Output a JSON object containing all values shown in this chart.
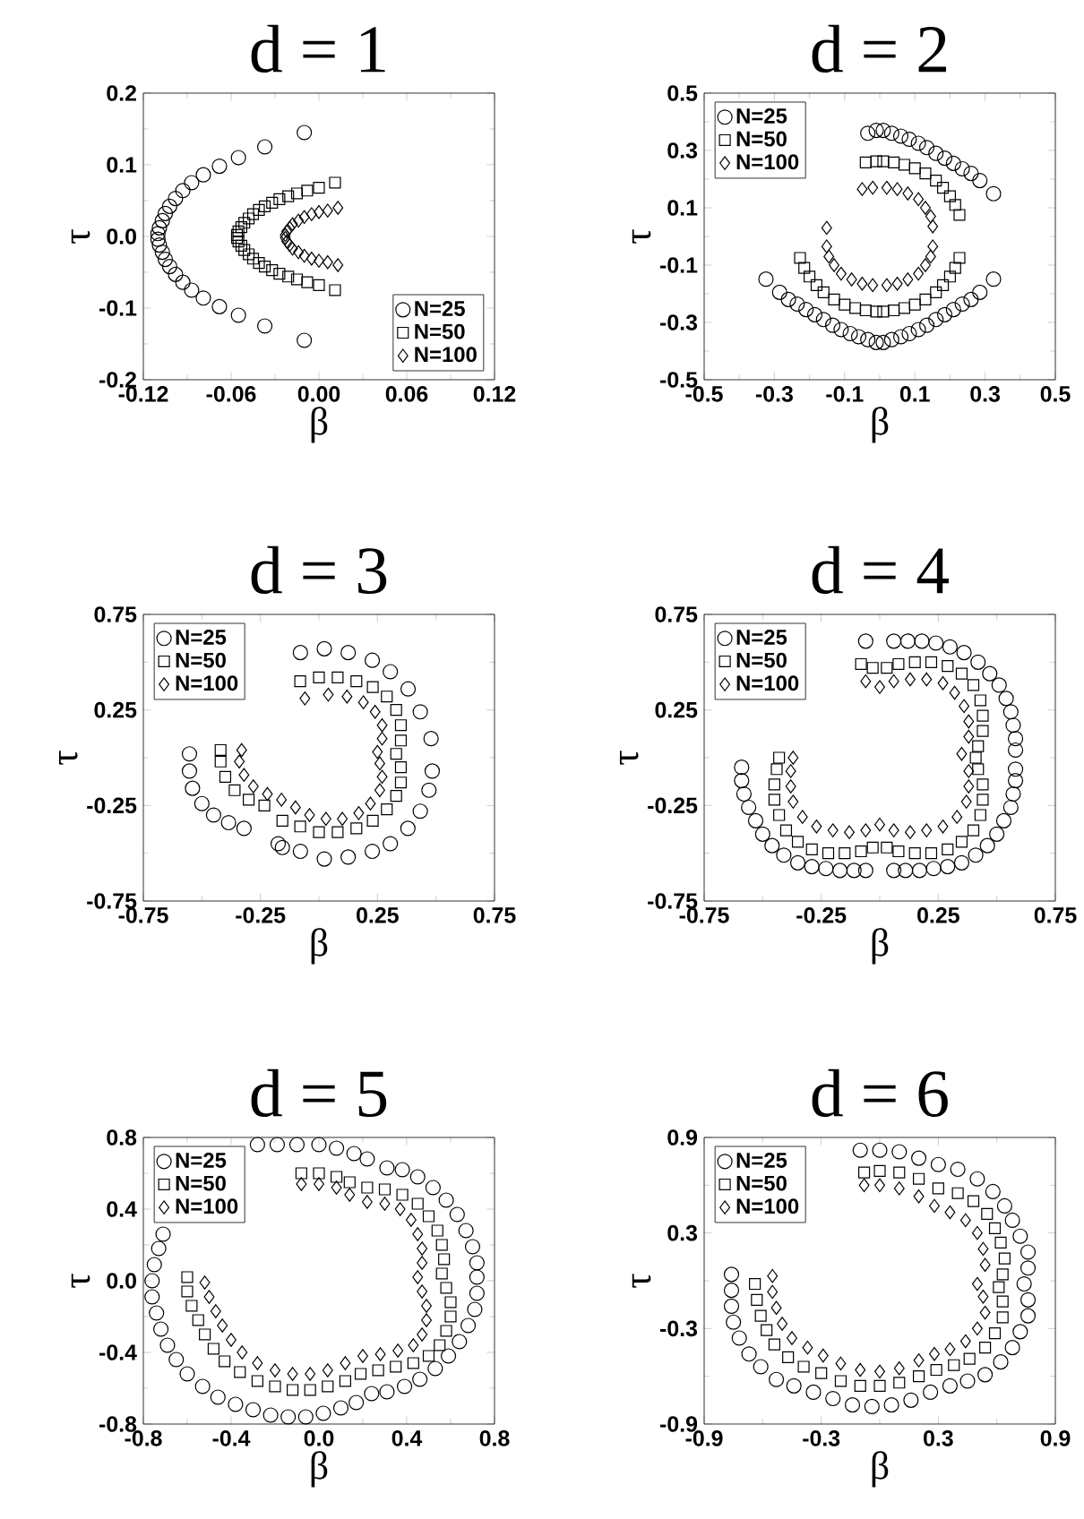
{
  "chart_data": [
    {
      "type": "scatter",
      "title": "d = 1",
      "xlabel": "β",
      "ylabel": "τ",
      "xlim": [
        -0.12,
        0.12
      ],
      "ylim": [
        -0.2,
        0.2
      ],
      "xticks": [
        -0.12,
        -0.06,
        {
          "value": 0,
          "label": "0.00"
        },
        0.06,
        0.12
      ],
      "yticks": [
        -0.2,
        -0.1,
        {
          "value": 0,
          "label": "0.0"
        },
        0.1,
        0.2
      ],
      "legend": "bottom right",
      "grid": false,
      "series": [
        {
          "name": "N=25",
          "color": "#000000",
          "marker": "circle",
          "x": [
            -0.01,
            -0.037,
            -0.055,
            -0.068,
            -0.079,
            -0.087,
            -0.093,
            -0.098,
            -0.102,
            -0.105,
            -0.107,
            -0.109,
            -0.11,
            -0.11,
            -0.109,
            -0.107,
            -0.105,
            -0.102,
            -0.098,
            -0.093,
            -0.087,
            -0.079,
            -0.068,
            -0.055,
            -0.037,
            -0.01
          ],
          "values": [
            0.145,
            0.125,
            0.11,
            0.098,
            0.086,
            0.075,
            0.064,
            0.053,
            0.042,
            0.032,
            0.022,
            0.012,
            0.004,
            -0.004,
            -0.012,
            -0.022,
            -0.032,
            -0.042,
            -0.053,
            -0.064,
            -0.075,
            -0.086,
            -0.098,
            -0.11,
            -0.125,
            -0.145
          ]
        },
        {
          "name": "N=50",
          "color": "#000000",
          "marker": "square",
          "x": [
            0.011,
            0.0,
            -0.008,
            -0.015,
            -0.021,
            -0.027,
            -0.032,
            -0.037,
            -0.041,
            -0.045,
            -0.048,
            -0.051,
            -0.053,
            -0.055,
            -0.056,
            -0.056,
            -0.055,
            -0.053,
            -0.051,
            -0.048,
            -0.045,
            -0.041,
            -0.037,
            -0.032,
            -0.027,
            -0.021,
            -0.015,
            -0.008,
            0.0,
            0.011
          ],
          "values": [
            0.075,
            0.068,
            0.064,
            0.06,
            0.056,
            0.052,
            0.047,
            0.042,
            0.037,
            0.031,
            0.025,
            0.019,
            0.013,
            0.007,
            0.002,
            -0.002,
            -0.007,
            -0.013,
            -0.019,
            -0.025,
            -0.031,
            -0.037,
            -0.042,
            -0.047,
            -0.052,
            -0.056,
            -0.06,
            -0.064,
            -0.068,
            -0.075
          ]
        },
        {
          "name": "N=100",
          "color": "#000000",
          "marker": "diamond",
          "x": [
            0.013,
            0.006,
            0.0,
            -0.005,
            -0.01,
            -0.014,
            -0.018,
            -0.02,
            -0.022,
            -0.023,
            -0.023,
            -0.022,
            -0.02,
            -0.018,
            -0.014,
            -0.01,
            -0.005,
            0.0,
            0.006,
            0.013
          ],
          "values": [
            0.04,
            0.036,
            0.034,
            0.031,
            0.027,
            0.022,
            0.017,
            0.012,
            0.007,
            0.002,
            -0.002,
            -0.007,
            -0.012,
            -0.017,
            -0.022,
            -0.027,
            -0.031,
            -0.034,
            -0.036,
            -0.04
          ]
        }
      ]
    },
    {
      "type": "scatter",
      "title": "d = 2",
      "xlabel": "β",
      "ylabel": "τ",
      "xlim": [
        -0.5,
        0.5
      ],
      "ylim": [
        -0.5,
        0.5
      ],
      "xticks": [
        -0.5,
        -0.3,
        -0.1,
        0.1,
        0.3,
        0.5
      ],
      "yticks": [
        -0.5,
        -0.3,
        -0.1,
        0.1,
        0.3,
        0.5
      ],
      "legend": "top left",
      "grid": false,
      "series": [
        {
          "name": "N=25",
          "color": "#000000",
          "marker": "circle",
          "x": [
            -0.324,
            -0.285,
            -0.26,
            -0.235,
            -0.21,
            -0.185,
            -0.16,
            -0.134,
            -0.11,
            -0.084,
            -0.06,
            -0.034,
            -0.01,
            0.01,
            0.034,
            0.06,
            0.084,
            0.11,
            0.134,
            0.16,
            0.185,
            0.21,
            0.235,
            0.26,
            0.285,
            0.324,
            -0.034,
            -0.01,
            0.01,
            0.034,
            0.06,
            0.084,
            0.11,
            0.134,
            0.16,
            0.185,
            0.21,
            0.235,
            0.26,
            0.285,
            0.324
          ],
          "values": [
            -0.149,
            -0.195,
            -0.22,
            -0.236,
            -0.255,
            -0.273,
            -0.29,
            -0.31,
            -0.325,
            -0.339,
            -0.35,
            -0.36,
            -0.37,
            -0.37,
            -0.36,
            -0.35,
            -0.339,
            -0.325,
            -0.31,
            -0.29,
            -0.273,
            -0.255,
            -0.236,
            -0.22,
            -0.195,
            -0.149,
            0.36,
            0.37,
            0.37,
            0.36,
            0.35,
            0.339,
            0.325,
            0.31,
            0.29,
            0.273,
            0.255,
            0.236,
            0.22,
            0.195,
            0.149
          ]
        },
        {
          "name": "N=50",
          "color": "#000000",
          "marker": "square",
          "x": [
            -0.227,
            -0.215,
            -0.2,
            -0.18,
            -0.16,
            -0.13,
            -0.1,
            -0.07,
            -0.04,
            -0.01,
            0.01,
            0.04,
            0.07,
            0.1,
            0.13,
            0.16,
            0.18,
            0.2,
            0.215,
            0.227,
            -0.04,
            -0.01,
            0.01,
            0.04,
            0.07,
            0.1,
            0.13,
            0.16,
            0.18,
            0.2,
            0.215,
            0.227
          ],
          "values": [
            -0.075,
            -0.11,
            -0.14,
            -0.17,
            -0.195,
            -0.22,
            -0.238,
            -0.25,
            -0.258,
            -0.262,
            -0.262,
            -0.258,
            -0.25,
            -0.238,
            -0.22,
            -0.195,
            -0.17,
            -0.14,
            -0.11,
            -0.075,
            0.258,
            0.262,
            0.262,
            0.258,
            0.25,
            0.238,
            0.22,
            0.195,
            0.17,
            0.14,
            0.11,
            0.075
          ]
        },
        {
          "name": "N=100",
          "color": "#000000",
          "marker": "diamond",
          "x": [
            -0.151,
            -0.145,
            -0.13,
            -0.11,
            -0.08,
            -0.05,
            -0.02,
            0.02,
            0.05,
            0.08,
            0.11,
            0.13,
            0.145,
            0.151,
            -0.151,
            -0.05,
            -0.02,
            0.02,
            0.05,
            0.08,
            0.11,
            0.13,
            0.145,
            0.151
          ],
          "values": [
            -0.035,
            -0.07,
            -0.1,
            -0.13,
            -0.15,
            -0.165,
            -0.17,
            -0.17,
            -0.165,
            -0.15,
            -0.13,
            -0.1,
            -0.07,
            -0.035,
            0.03,
            0.165,
            0.17,
            0.17,
            0.165,
            0.15,
            0.13,
            0.1,
            0.07,
            0.035
          ]
        }
      ]
    },
    {
      "type": "scatter",
      "title": "d = 3",
      "xlabel": "β",
      "ylabel": "τ",
      "xlim": [
        -0.75,
        0.75
      ],
      "ylim": [
        -0.75,
        0.75
      ],
      "xticks": [
        -0.75,
        -0.25,
        0.25,
        0.75
      ],
      "yticks": [
        -0.75,
        -0.25,
        0.25,
        0.75
      ],
      "legend": "top left",
      "grid": false,
      "series": [
        {
          "name": "N=25",
          "color": "#000000",
          "marker": "circle",
          "x": [
            -0.079,
            0.023,
            0.125,
            0.228,
            0.305,
            0.381,
            0.433,
            0.479,
            0.484,
            0.47,
            0.433,
            0.38,
            0.305,
            0.228,
            0.125,
            0.023,
            -0.079,
            -0.156,
            -0.174,
            -0.32,
            -0.386,
            -0.45,
            -0.5,
            -0.54,
            -0.553,
            -0.553
          ],
          "values": [
            0.55,
            0.57,
            0.55,
            0.51,
            0.45,
            0.36,
            0.24,
            0.1,
            -0.07,
            -0.17,
            -0.28,
            -0.37,
            -0.45,
            -0.49,
            -0.52,
            -0.53,
            -0.49,
            -0.47,
            -0.45,
            -0.37,
            -0.34,
            -0.3,
            -0.24,
            -0.16,
            -0.07,
            0.02
          ]
        },
        {
          "name": "N=50",
          "color": "#000000",
          "marker": "square",
          "x": [
            -0.08,
            0.0,
            0.08,
            0.16,
            0.23,
            0.29,
            0.33,
            0.35,
            0.35,
            0.33,
            0.35,
            0.35,
            0.33,
            0.29,
            0.23,
            0.16,
            0.08,
            0.0,
            -0.08,
            -0.156,
            -0.233,
            -0.3,
            -0.36,
            -0.4,
            -0.42,
            -0.42
          ],
          "values": [
            0.4,
            0.42,
            0.42,
            0.4,
            0.37,
            0.32,
            0.25,
            0.17,
            0.09,
            0.02,
            -0.05,
            -0.13,
            -0.2,
            -0.27,
            -0.33,
            -0.37,
            -0.39,
            -0.39,
            -0.36,
            -0.33,
            -0.25,
            -0.22,
            -0.17,
            -0.1,
            -0.02,
            0.04
          ]
        },
        {
          "name": "N=100",
          "color": "#000000",
          "marker": "diamond",
          "x": [
            -0.06,
            0.04,
            0.12,
            0.19,
            0.24,
            0.27,
            0.27,
            0.25,
            0.26,
            0.27,
            0.26,
            0.22,
            0.17,
            0.1,
            0.03,
            -0.04,
            -0.1,
            -0.16,
            -0.22,
            -0.28,
            -0.32,
            -0.34,
            -0.33
          ],
          "values": [
            0.31,
            0.33,
            0.32,
            0.29,
            0.24,
            0.17,
            0.1,
            0.03,
            -0.03,
            -0.1,
            -0.17,
            -0.24,
            -0.29,
            -0.32,
            -0.32,
            -0.3,
            -0.26,
            -0.22,
            -0.19,
            -0.15,
            -0.09,
            -0.02,
            0.04
          ]
        }
      ]
    },
    {
      "type": "scatter",
      "title": "d = 4",
      "xlabel": "β",
      "ylabel": "τ",
      "xlim": [
        -0.75,
        0.75
      ],
      "ylim": [
        -0.75,
        0.75
      ],
      "xticks": [
        -0.75,
        -0.25,
        0.25,
        0.75
      ],
      "yticks": [
        -0.75,
        -0.25,
        0.25,
        0.75
      ],
      "legend": "top left",
      "grid": false,
      "series": [
        {
          "name": "N=25",
          "color": "#000000",
          "marker": "circle",
          "x": [
            -0.06,
            0.06,
            0.12,
            0.18,
            0.24,
            0.3,
            0.36,
            0.42,
            0.47,
            0.51,
            0.54,
            0.56,
            0.57,
            0.58,
            0.58,
            0.58,
            0.58,
            0.57,
            0.56,
            0.53,
            0.5,
            0.46,
            0.41,
            0.35,
            0.29,
            0.23,
            0.17,
            0.11,
            0.06,
            -0.06,
            -0.11,
            -0.17,
            -0.23,
            -0.29,
            -0.35,
            -0.41,
            -0.46,
            -0.5,
            -0.53,
            -0.56,
            -0.58,
            -0.59,
            -0.59
          ],
          "values": [
            0.61,
            0.61,
            0.61,
            0.61,
            0.6,
            0.58,
            0.55,
            0.5,
            0.44,
            0.38,
            0.31,
            0.24,
            0.17,
            0.1,
            0.04,
            -0.06,
            -0.12,
            -0.19,
            -0.26,
            -0.33,
            -0.4,
            -0.46,
            -0.51,
            -0.55,
            -0.57,
            -0.58,
            -0.59,
            -0.59,
            -0.59,
            -0.59,
            -0.59,
            -0.59,
            -0.58,
            -0.57,
            -0.55,
            -0.51,
            -0.46,
            -0.4,
            -0.33,
            -0.26,
            -0.19,
            -0.12,
            -0.05
          ]
        },
        {
          "name": "N=50",
          "color": "#000000",
          "marker": "square",
          "x": [
            -0.08,
            -0.03,
            0.03,
            0.08,
            0.15,
            0.22,
            0.29,
            0.35,
            0.4,
            0.43,
            0.44,
            0.44,
            0.42,
            0.41,
            0.42,
            0.44,
            0.44,
            0.43,
            0.4,
            0.35,
            0.29,
            0.22,
            0.15,
            0.08,
            0.03,
            -0.03,
            -0.08,
            -0.15,
            -0.22,
            -0.29,
            -0.35,
            -0.4,
            -0.43,
            -0.45,
            -0.45,
            -0.44,
            -0.43
          ],
          "values": [
            0.49,
            0.47,
            0.47,
            0.49,
            0.5,
            0.5,
            0.48,
            0.44,
            0.38,
            0.3,
            0.22,
            0.14,
            0.06,
            0.0,
            -0.06,
            -0.14,
            -0.22,
            -0.3,
            -0.38,
            -0.44,
            -0.48,
            -0.5,
            -0.5,
            -0.49,
            -0.47,
            -0.47,
            -0.49,
            -0.5,
            -0.5,
            -0.48,
            -0.44,
            -0.38,
            -0.3,
            -0.22,
            -0.14,
            -0.06,
            0.0
          ]
        },
        {
          "name": "N=100",
          "color": "#000000",
          "marker": "diamond",
          "x": [
            -0.06,
            0.0,
            0.06,
            0.13,
            0.2,
            0.27,
            0.32,
            0.36,
            0.38,
            0.38,
            0.35,
            0.38,
            0.38,
            0.37,
            0.33,
            0.27,
            0.2,
            0.13,
            0.06,
            0.0,
            -0.06,
            -0.13,
            -0.2,
            -0.27,
            -0.33,
            -0.37,
            -0.38,
            -0.38,
            -0.37
          ],
          "values": [
            0.4,
            0.37,
            0.4,
            0.41,
            0.41,
            0.39,
            0.34,
            0.27,
            0.19,
            0.11,
            0.02,
            -0.07,
            -0.15,
            -0.23,
            -0.31,
            -0.36,
            -0.38,
            -0.39,
            -0.38,
            -0.35,
            -0.38,
            -0.39,
            -0.38,
            -0.36,
            -0.31,
            -0.23,
            -0.15,
            -0.07,
            0.0
          ]
        }
      ]
    },
    {
      "type": "scatter",
      "title": "d = 5",
      "xlabel": "β",
      "ylabel": "τ",
      "xlim": [
        -0.8,
        0.8
      ],
      "ylim": [
        -0.8,
        0.8
      ],
      "xticks": [
        -0.8,
        -0.4,
        {
          "value": 0,
          "label": "0.0"
        },
        0.4,
        0.8
      ],
      "yticks": [
        -0.8,
        -0.4,
        {
          "value": 0,
          "label": "0.0"
        },
        0.4,
        0.8
      ],
      "legend": "top left",
      "grid": false,
      "series": [
        {
          "name": "N=25",
          "color": "#000000",
          "marker": "circle",
          "x": [
            -0.28,
            -0.19,
            -0.1,
            0.0,
            0.08,
            0.16,
            0.22,
            0.31,
            0.38,
            0.45,
            0.52,
            0.58,
            0.63,
            0.67,
            0.7,
            0.72,
            0.72,
            0.72,
            0.71,
            0.68,
            0.64,
            0.59,
            0.53,
            0.46,
            0.39,
            0.31,
            0.24,
            0.17,
            0.1,
            0.02,
            -0.06,
            -0.14,
            -0.22,
            -0.3,
            -0.38,
            -0.46,
            -0.53,
            -0.6,
            -0.65,
            -0.69,
            -0.72,
            -0.74,
            -0.76,
            -0.76,
            -0.75,
            -0.73,
            -0.71
          ],
          "values": [
            0.76,
            0.76,
            0.76,
            0.76,
            0.74,
            0.71,
            0.68,
            0.63,
            0.62,
            0.58,
            0.52,
            0.45,
            0.37,
            0.28,
            0.19,
            0.1,
            0.02,
            -0.07,
            -0.16,
            -0.25,
            -0.34,
            -0.42,
            -0.49,
            -0.55,
            -0.59,
            -0.62,
            -0.63,
            -0.68,
            -0.71,
            -0.74,
            -0.76,
            -0.76,
            -0.75,
            -0.72,
            -0.69,
            -0.65,
            -0.59,
            -0.52,
            -0.44,
            -0.36,
            -0.27,
            -0.18,
            -0.09,
            0.0,
            0.09,
            0.18,
            0.26
          ]
        },
        {
          "name": "N=50",
          "color": "#000000",
          "marker": "square",
          "x": [
            -0.08,
            0.0,
            0.08,
            0.14,
            0.22,
            0.3,
            0.38,
            0.45,
            0.5,
            0.54,
            0.56,
            0.57,
            0.56,
            0.58,
            0.6,
            0.6,
            0.58,
            0.55,
            0.5,
            0.43,
            0.35,
            0.27,
            0.19,
            0.12,
            0.04,
            -0.04,
            -0.12,
            -0.2,
            -0.28,
            -0.36,
            -0.43,
            -0.48,
            -0.52,
            -0.55,
            -0.58,
            -0.6,
            -0.6
          ],
          "values": [
            0.6,
            0.6,
            0.58,
            0.55,
            0.52,
            0.51,
            0.48,
            0.43,
            0.36,
            0.28,
            0.2,
            0.12,
            0.04,
            -0.04,
            -0.12,
            -0.2,
            -0.28,
            -0.36,
            -0.42,
            -0.46,
            -0.48,
            -0.5,
            -0.52,
            -0.56,
            -0.59,
            -0.61,
            -0.61,
            -0.59,
            -0.56,
            -0.51,
            -0.45,
            -0.38,
            -0.3,
            -0.22,
            -0.14,
            -0.06,
            0.02
          ]
        },
        {
          "name": "N=100",
          "color": "#000000",
          "marker": "diamond",
          "x": [
            -0.08,
            0.0,
            0.08,
            0.14,
            0.22,
            0.3,
            0.37,
            0.42,
            0.45,
            0.47,
            0.47,
            0.45,
            0.47,
            0.49,
            0.49,
            0.47,
            0.43,
            0.36,
            0.28,
            0.2,
            0.12,
            0.04,
            -0.04,
            -0.12,
            -0.2,
            -0.28,
            -0.35,
            -0.4,
            -0.44,
            -0.47,
            -0.5,
            -0.52
          ],
          "values": [
            0.54,
            0.54,
            0.52,
            0.48,
            0.44,
            0.43,
            0.4,
            0.34,
            0.26,
            0.18,
            0.1,
            0.02,
            -0.06,
            -0.14,
            -0.22,
            -0.3,
            -0.36,
            -0.39,
            -0.41,
            -0.42,
            -0.46,
            -0.5,
            -0.52,
            -0.52,
            -0.5,
            -0.46,
            -0.4,
            -0.33,
            -0.25,
            -0.17,
            -0.09,
            -0.01
          ]
        }
      ]
    },
    {
      "type": "scatter",
      "title": "d = 6",
      "xlabel": "β",
      "ylabel": "τ",
      "xlim": [
        -0.9,
        0.9
      ],
      "ylim": [
        -0.9,
        0.9
      ],
      "xticks": [
        -0.9,
        -0.3,
        0.3,
        0.9
      ],
      "yticks": [
        -0.9,
        -0.3,
        0.3,
        0.9
      ],
      "legend": "top left",
      "grid": false,
      "series": [
        {
          "name": "N=25",
          "color": "#000000",
          "marker": "circle",
          "x": [
            -0.1,
            0.0,
            0.1,
            0.2,
            0.3,
            0.4,
            0.5,
            0.58,
            0.64,
            0.68,
            0.72,
            0.76,
            0.76,
            0.74,
            0.76,
            0.76,
            0.72,
            0.68,
            0.62,
            0.54,
            0.45,
            0.36,
            0.26,
            0.16,
            0.06,
            -0.04,
            -0.14,
            -0.24,
            -0.34,
            -0.44,
            -0.53,
            -0.61,
            -0.67,
            -0.72,
            -0.75,
            -0.76,
            -0.76,
            -0.76
          ],
          "values": [
            0.82,
            0.82,
            0.81,
            0.77,
            0.73,
            0.7,
            0.64,
            0.56,
            0.47,
            0.38,
            0.28,
            0.18,
            0.08,
            -0.02,
            -0.12,
            -0.22,
            -0.32,
            -0.42,
            -0.51,
            -0.59,
            -0.63,
            -0.66,
            -0.7,
            -0.75,
            -0.78,
            -0.79,
            -0.78,
            -0.74,
            -0.7,
            -0.66,
            -0.62,
            -0.54,
            -0.46,
            -0.36,
            -0.26,
            -0.16,
            -0.06,
            0.04
          ]
        },
        {
          "name": "N=50",
          "color": "#000000",
          "marker": "square",
          "x": [
            -0.08,
            0.0,
            0.1,
            0.2,
            0.3,
            0.4,
            0.48,
            0.55,
            0.59,
            0.62,
            0.64,
            0.63,
            0.61,
            0.63,
            0.63,
            0.59,
            0.54,
            0.46,
            0.38,
            0.29,
            0.2,
            0.1,
            0.0,
            -0.1,
            -0.2,
            -0.3,
            -0.39,
            -0.47,
            -0.54,
            -0.58,
            -0.61,
            -0.63,
            -0.64
          ],
          "values": [
            0.68,
            0.69,
            0.68,
            0.64,
            0.58,
            0.55,
            0.5,
            0.42,
            0.33,
            0.24,
            0.14,
            0.04,
            -0.04,
            -0.13,
            -0.23,
            -0.33,
            -0.42,
            -0.49,
            -0.53,
            -0.56,
            -0.6,
            -0.64,
            -0.66,
            -0.66,
            -0.63,
            -0.58,
            -0.54,
            -0.48,
            -0.4,
            -0.31,
            -0.22,
            -0.12,
            -0.02
          ]
        },
        {
          "name": "N=100",
          "color": "#000000",
          "marker": "diamond",
          "x": [
            -0.08,
            0.0,
            0.1,
            0.2,
            0.28,
            0.36,
            0.44,
            0.5,
            0.53,
            0.54,
            0.5,
            0.53,
            0.54,
            0.5,
            0.44,
            0.36,
            0.28,
            0.2,
            0.1,
            0.0,
            -0.1,
            -0.2,
            -0.29,
            -0.37,
            -0.45,
            -0.5,
            -0.53,
            -0.55,
            -0.55
          ],
          "values": [
            0.6,
            0.6,
            0.58,
            0.53,
            0.47,
            0.43,
            0.38,
            0.3,
            0.2,
            0.1,
            -0.02,
            -0.1,
            -0.2,
            -0.3,
            -0.38,
            -0.43,
            -0.46,
            -0.5,
            -0.55,
            -0.57,
            -0.56,
            -0.52,
            -0.47,
            -0.42,
            -0.36,
            -0.27,
            -0.17,
            -0.07,
            0.03
          ]
        }
      ]
    }
  ]
}
